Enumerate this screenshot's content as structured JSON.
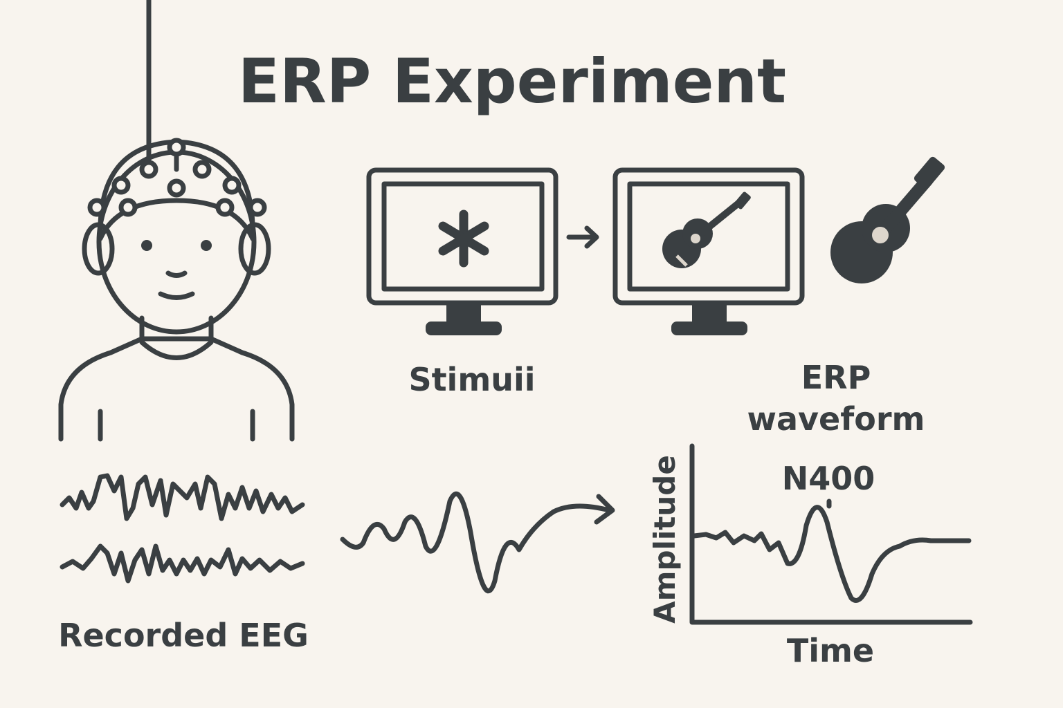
{
  "title": "ERP Experiment",
  "stimuli_label": "Stimuii",
  "erp_label": [
    "ERP",
    "waveform"
  ],
  "eeg_label": "Recorded EEG",
  "plot": {
    "annotation": "N400",
    "y_label": "Amplitude",
    "x_label": "Time"
  }
}
